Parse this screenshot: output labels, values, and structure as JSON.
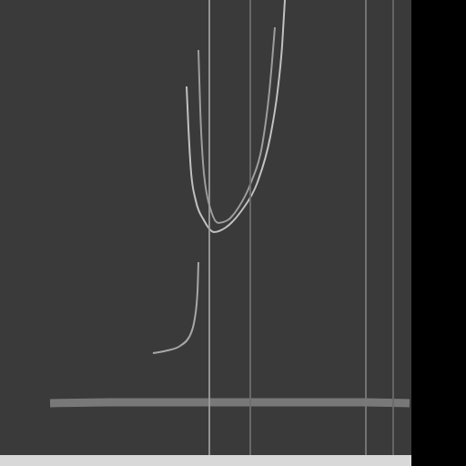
{
  "chart_data": {
    "type": "spectrogram",
    "tick_labels": false,
    "grid": false,
    "xlim": [
      0,
      452
    ],
    "ylim": [
      0,
      500
    ],
    "series": [
      {
        "type": "band",
        "color": "#8e8e8e",
        "x": [
          55,
          120,
          200,
          300,
          400,
          450
        ],
        "values": [
          57,
          58,
          58,
          58,
          58,
          57
        ]
      },
      {
        "type": "line",
        "color": "#d0d0d0",
        "x": [
          205,
          207,
          210,
          215,
          224,
          235,
          248,
          265,
          283,
          297,
          305,
          310,
          313
        ],
        "values": [
          405,
          360,
          310,
          280,
          258,
          245,
          250,
          268,
          300,
          350,
          400,
          450,
          500
        ]
      },
      {
        "type": "line",
        "color": "#a8a8a8",
        "x": [
          218,
          220,
          224,
          232,
          240,
          250,
          262,
          276,
          288,
          296,
          302
        ],
        "values": [
          445,
          380,
          310,
          268,
          255,
          258,
          272,
          300,
          340,
          400,
          470
        ]
      },
      {
        "type": "line",
        "color": "#b4b4b4",
        "x": [
          218,
          217,
          214,
          208,
          198,
          184,
          168
        ],
        "values": [
          212,
          180,
          150,
          130,
          120,
          115,
          112
        ]
      },
      {
        "type": "line",
        "color": "#9c9c9c",
        "x": [
          230,
          230
        ],
        "values": [
          0,
          500
        ]
      },
      {
        "type": "line",
        "color": "#6e6e6e",
        "x": [
          275,
          275
        ],
        "values": [
          0,
          500
        ]
      },
      {
        "type": "line",
        "color": "#7a7a7a",
        "x": [
          402,
          402
        ],
        "values": [
          0,
          500
        ]
      },
      {
        "type": "line",
        "color": "#6a6a6a",
        "x": [
          432,
          432
        ],
        "values": [
          0,
          500
        ]
      }
    ]
  }
}
